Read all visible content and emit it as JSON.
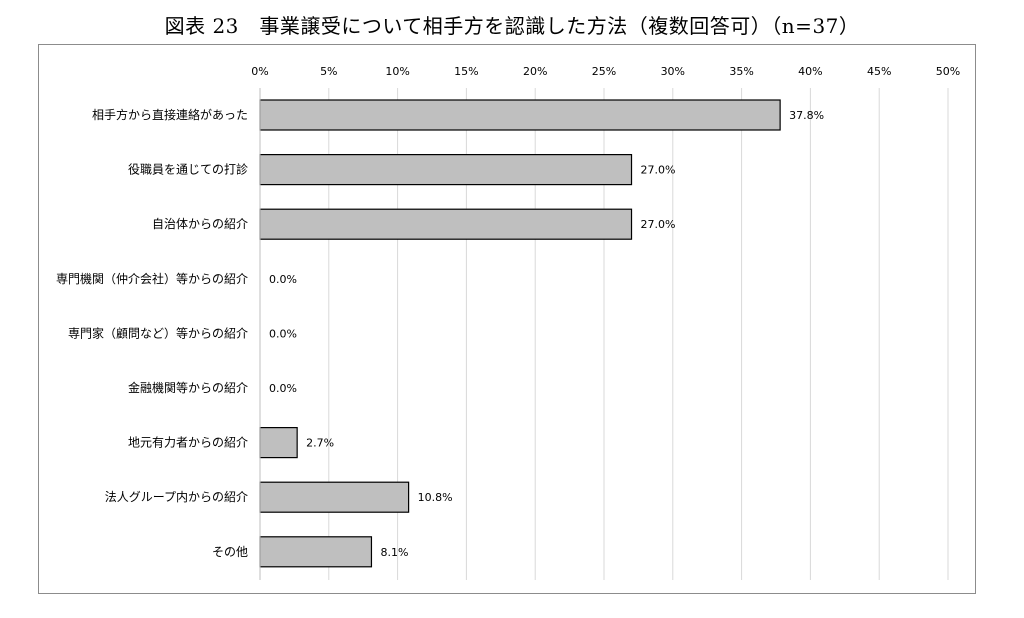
{
  "title": "図表 23　事業譲受について相手方を認識した方法（複数回答可）（n=37）",
  "chart_data": {
    "type": "bar",
    "orientation": "horizontal",
    "title": "図表 23　事業譲受について相手方を認識した方法（複数回答可）（n=37）",
    "categories": [
      "相手方から直接連絡があった",
      "役職員を通じての打診",
      "自治体からの紹介",
      "専門機関（仲介会社）等からの紹介",
      "専門家（顧問など）等からの紹介",
      "金融機関等からの紹介",
      "地元有力者からの紹介",
      "法人グループ内からの紹介",
      "その他"
    ],
    "values": [
      37.8,
      27.0,
      27.0,
      0.0,
      0.0,
      0.0,
      2.7,
      10.8,
      8.1
    ],
    "data_labels": [
      "37.8%",
      "27.0%",
      "27.0%",
      "0.0%",
      "0.0%",
      "0.0%",
      "2.7%",
      "10.8%",
      "8.1%"
    ],
    "xlim": [
      0,
      50
    ],
    "x_ticks": [
      "0%",
      "5%",
      "10%",
      "15%",
      "20%",
      "25%",
      "30%",
      "35%",
      "40%",
      "45%",
      "50%"
    ],
    "x_tick_values": [
      0,
      5,
      10,
      15,
      20,
      25,
      30,
      35,
      40,
      45,
      50
    ],
    "x_axis_position": "top",
    "grid": true,
    "bar_color": "#bfbfbf",
    "bar_edge_color": "#000000",
    "grid_color": "#d9d9d9"
  }
}
